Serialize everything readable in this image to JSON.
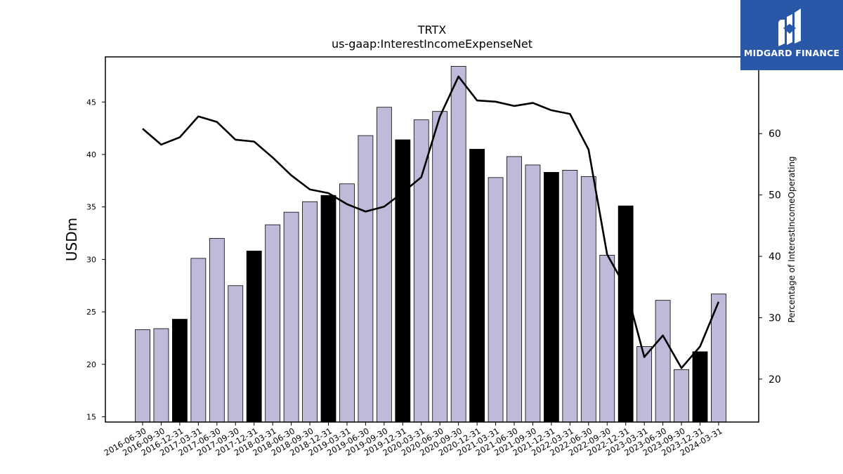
{
  "chart_data": {
    "type": "bar",
    "title": "TRTX",
    "subtitle": "us-gaap:InterestIncomeExpenseNet",
    "ylabel": "USDm",
    "y2label": "Percentage of InterestIncomeOperating",
    "ylim": [
      14.5,
      49.3
    ],
    "y2lim": [
      13,
      72.5
    ],
    "yticks": [
      15,
      20,
      25,
      30,
      35,
      40,
      45
    ],
    "y2ticks": [
      20,
      30,
      40,
      50,
      60
    ],
    "grid": false,
    "categories": [
      "2016-06-30",
      "2016-09-30",
      "2016-12-31",
      "2017-03-31",
      "2017-06-30",
      "2017-09-30",
      "2017-12-31",
      "2018-03-31",
      "2018-06-30",
      "2018-09-30",
      "2018-12-31",
      "2019-03-31",
      "2019-06-30",
      "2019-09-30",
      "2019-12-31",
      "2020-03-31",
      "2020-06-30",
      "2020-09-30",
      "2020-12-31",
      "2021-03-31",
      "2021-06-30",
      "2021-09-30",
      "2021-12-31",
      "2022-03-31",
      "2022-06-30",
      "2022-09-30",
      "2022-12-31",
      "2023-03-31",
      "2023-06-30",
      "2023-09-30",
      "2023-12-31",
      "2024-03-31"
    ],
    "series": [
      {
        "kind": "bar",
        "axis": "left",
        "values": [
          23.3,
          23.4,
          24.3,
          30.1,
          32.0,
          27.5,
          30.8,
          33.3,
          34.5,
          35.5,
          36.1,
          37.2,
          41.8,
          44.5,
          41.4,
          43.3,
          44.1,
          48.4,
          40.5,
          37.8,
          39.8,
          39.0,
          38.3,
          38.5,
          37.9,
          30.4,
          35.1,
          21.7,
          26.1,
          19.5,
          21.2,
          26.7
        ],
        "highlight": [
          false,
          false,
          true,
          false,
          false,
          false,
          true,
          false,
          false,
          false,
          true,
          false,
          false,
          false,
          true,
          false,
          false,
          false,
          true,
          false,
          false,
          false,
          true,
          false,
          false,
          false,
          true,
          false,
          false,
          false,
          true,
          false
        ]
      },
      {
        "kind": "line",
        "axis": "right",
        "values": [
          60.8,
          58.2,
          59.4,
          62.8,
          61.9,
          59.0,
          58.7,
          56.1,
          53.2,
          50.9,
          50.3,
          48.5,
          47.3,
          48.1,
          50.4,
          52.9,
          62.8,
          69.3,
          65.4,
          65.2,
          64.5,
          65.0,
          63.8,
          63.2,
          57.4,
          40.3,
          34.9,
          23.6,
          27.1,
          21.8,
          25.3,
          32.6
        ]
      }
    ],
    "colors": {
      "bar": "#bebada",
      "bar_highlight": "#000000",
      "line": "#000000"
    }
  },
  "logo": {
    "text": "MIDGARD FINANCE",
    "background": "#2a58a8"
  }
}
